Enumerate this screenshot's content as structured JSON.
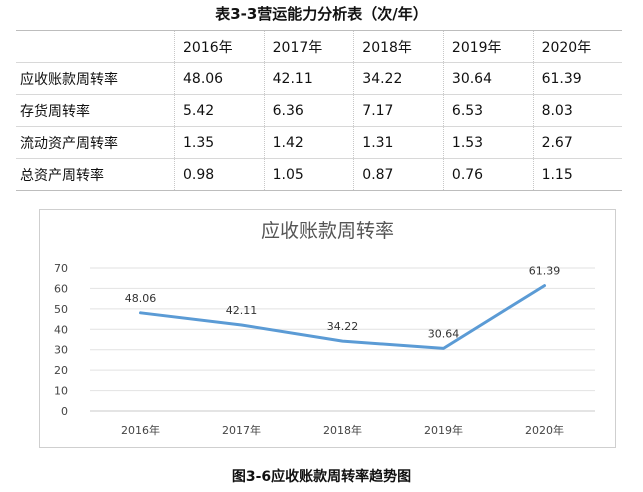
{
  "table": {
    "title": "表3-3营运能力分析表（次/年）",
    "header": [
      "",
      "2016年",
      "2017年",
      "2018年",
      "2019年",
      "2020年"
    ],
    "rows": [
      {
        "label": "应收账款周转率",
        "values": [
          "48.06",
          "42.11",
          "34.22",
          "30.64",
          "61.39"
        ]
      },
      {
        "label": "存货周转率",
        "values": [
          "5.42",
          "6.36",
          "7.17",
          "6.53",
          "8.03"
        ]
      },
      {
        "label": "流动资产周转率",
        "values": [
          "1.35",
          "1.42",
          "1.31",
          "1.53",
          "2.67"
        ]
      },
      {
        "label": "总资产周转率",
        "values": [
          "0.98",
          "1.05",
          "0.87",
          "0.76",
          "1.15"
        ]
      }
    ]
  },
  "chart_data": {
    "type": "line",
    "title": "应收账款周转率",
    "categories": [
      "2016年",
      "2017年",
      "2018年",
      "2019年",
      "2020年"
    ],
    "series": [
      {
        "values": [
          48.06,
          42.11,
          34.22,
          30.64,
          61.39
        ]
      }
    ],
    "ylim": [
      0,
      70
    ],
    "yticks": [
      0,
      10,
      20,
      30,
      40,
      50,
      60,
      70
    ],
    "grid": true,
    "data_labels": [
      "48.06",
      "42.11",
      "34.22",
      "30.64",
      "61.39"
    ],
    "line_color": "#5b9bd5"
  },
  "caption": "图3-6应收账款周转率趋势图"
}
